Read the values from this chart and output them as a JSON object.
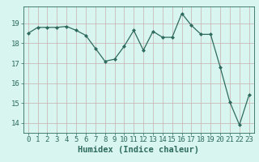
{
  "x": [
    0,
    1,
    2,
    3,
    4,
    5,
    6,
    7,
    8,
    9,
    10,
    11,
    12,
    13,
    14,
    15,
    16,
    17,
    18,
    19,
    20,
    21,
    22,
    23
  ],
  "y": [
    18.5,
    18.8,
    18.8,
    18.8,
    18.85,
    18.65,
    18.4,
    17.75,
    17.1,
    17.2,
    17.85,
    18.65,
    17.65,
    18.6,
    18.3,
    18.3,
    19.5,
    18.9,
    18.45,
    18.45,
    16.8,
    15.05,
    13.9,
    15.4
  ],
  "line_color": "#2e6b5e",
  "marker": "D",
  "marker_size": 2.0,
  "bg_color": "#d8f5f0",
  "grid_color": "#c8b0b0",
  "xlabel": "Humidex (Indice chaleur)",
  "ylim": [
    13.5,
    19.85
  ],
  "xlim": [
    -0.5,
    23.5
  ],
  "yticks": [
    14,
    15,
    16,
    17,
    18,
    19
  ],
  "xticks": [
    0,
    1,
    2,
    3,
    4,
    5,
    6,
    7,
    8,
    9,
    10,
    11,
    12,
    13,
    14,
    15,
    16,
    17,
    18,
    19,
    20,
    21,
    22,
    23
  ],
  "tick_color": "#2e6b5e",
  "label_fontsize": 7.5,
  "tick_fontsize": 6.5,
  "linewidth": 0.9
}
